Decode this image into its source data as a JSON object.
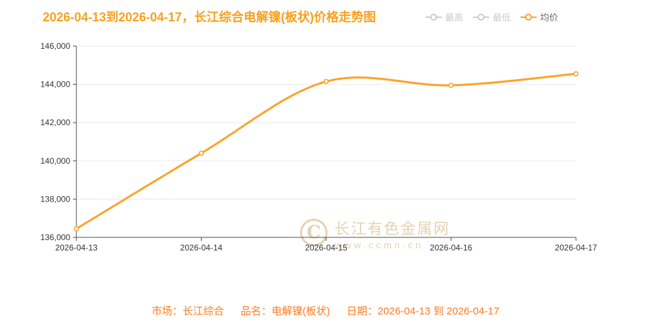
{
  "title": "2026-04-13到2026-04-17，长江综合电解镍(板状)价格走势图",
  "legend": [
    {
      "label": "最高",
      "active": false
    },
    {
      "label": "最低",
      "active": false
    },
    {
      "label": "均价",
      "active": true
    }
  ],
  "watermark": {
    "logo_letter": "C",
    "site_name": "长江有色金属网",
    "site_url": "www.ccmn.cn"
  },
  "footer": {
    "market_label": "市场：",
    "market_value": "长江综合",
    "product_label": "品名：",
    "product_value": "电解镍(板状)",
    "date_label": "日期：",
    "date_value": "2026-04-13 到 2026-04-17"
  },
  "colors": {
    "title": "#f9a01f",
    "line": "#faa428",
    "marker_fill": "#ffffff",
    "footer": "#ff7a1e",
    "axis": "#4d4d4d",
    "axis_label": "#333333",
    "grid": "#e9e9e9",
    "legend_active_text": "#666666",
    "legend_inactive": "#cccccc",
    "watermark": "#cfb071"
  },
  "chart_data": {
    "type": "line",
    "title": "2026-04-13到2026-04-17，长江综合电解镍(板状)价格走势图",
    "x": [
      "2026-04-13",
      "2026-04-14",
      "2026-04-15",
      "2026-04-16",
      "2026-04-17"
    ],
    "series": [
      {
        "name": "最高",
        "visible": false,
        "values": []
      },
      {
        "name": "最低",
        "visible": false,
        "values": []
      },
      {
        "name": "均价",
        "visible": true,
        "values": [
          136450,
          140400,
          144150,
          143950,
          144550
        ]
      }
    ],
    "xlabel": "",
    "ylabel": "",
    "ylim": [
      136000,
      146000
    ],
    "ytick_step": 2000,
    "ytick_labels": [
      "136,000",
      "138,000",
      "140,000",
      "142,000",
      "144,000",
      "146,000"
    ],
    "smooth": true,
    "grid": true,
    "legend_position": "top-right"
  }
}
